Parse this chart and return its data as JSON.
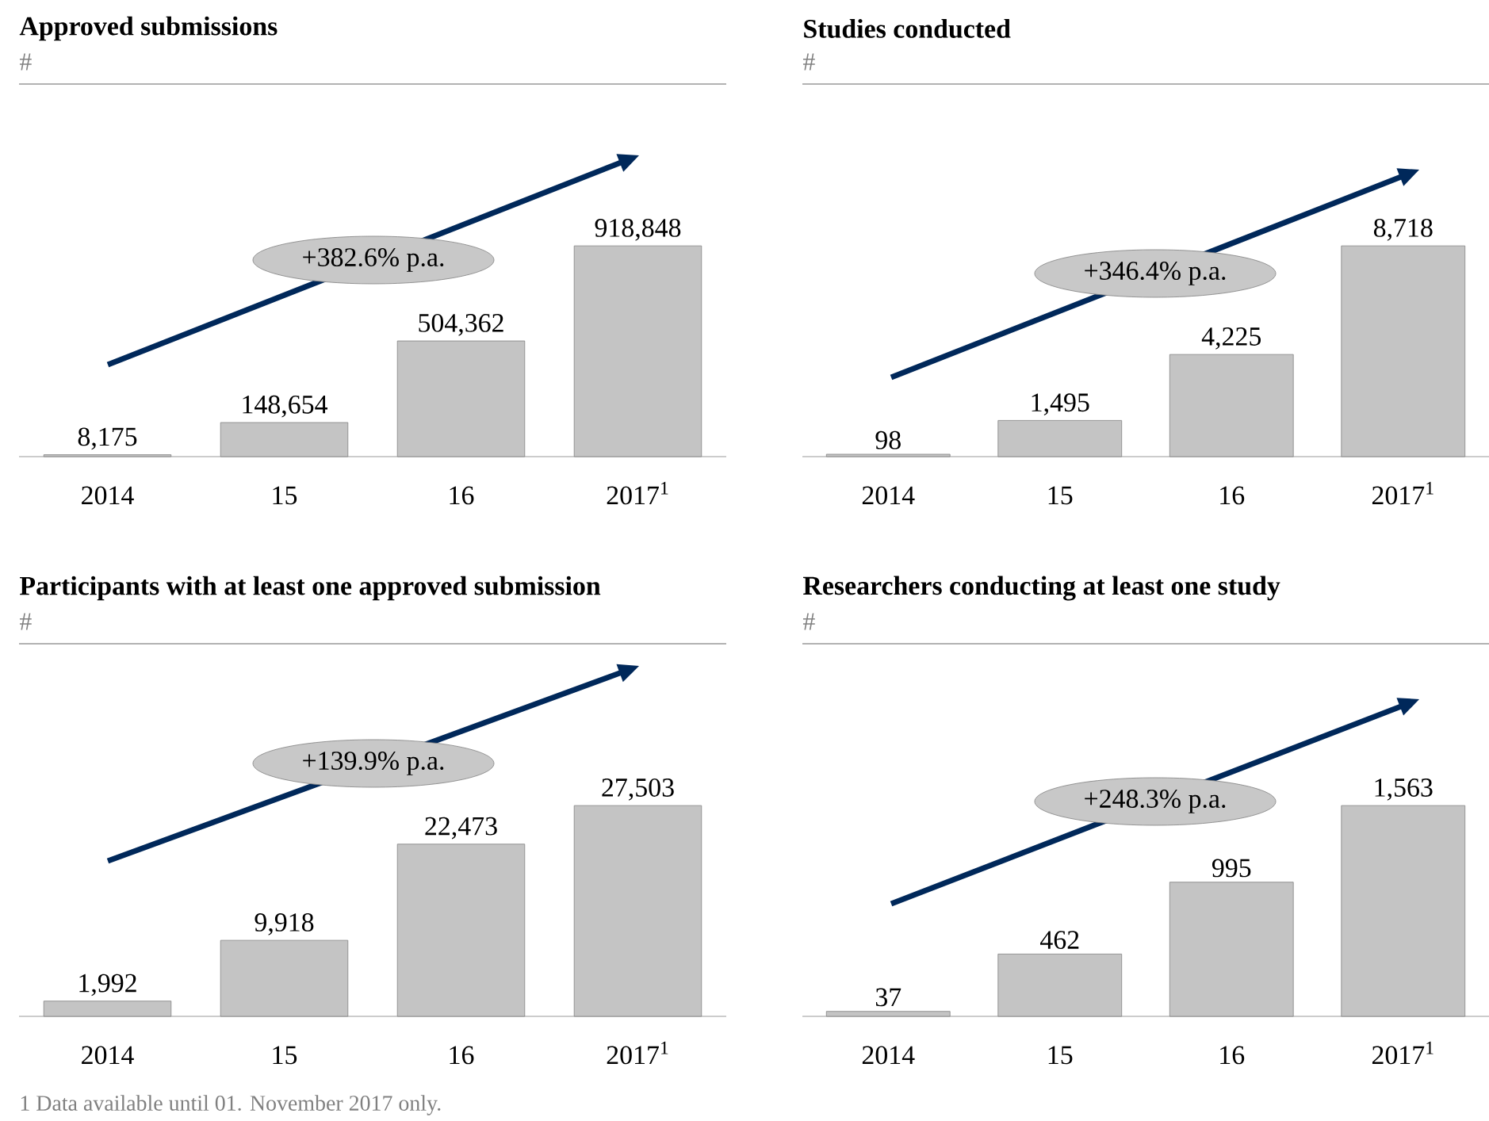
{
  "chart_data": [
    {
      "type": "bar",
      "title": "Approved submissions",
      "subtitle": "#",
      "categories": [
        "2014",
        "15",
        "16",
        "2017$^{1}$"
      ],
      "values": [
        8175,
        148654,
        504362,
        918848
      ],
      "value_labels": [
        "8,175",
        "148,654",
        "504,362",
        "918,848"
      ],
      "color": "#c4c4c4",
      "annotations": [
        "+382.6% p.a."
      ]
    },
    {
      "type": "bar",
      "title": "Studies conducted",
      "subtitle": "#",
      "categories": [
        "2014",
        "15",
        "16",
        "2017$^{1}$"
      ],
      "values": [
        98,
        1495,
        4225,
        8718
      ],
      "value_labels": [
        "98",
        "1,495",
        "4,225",
        "8,718"
      ],
      "color": "#c4c4c4",
      "annotations": [
        "+346.4% p.a."
      ]
    },
    {
      "type": "bar",
      "title": "Participants with at least one approved submission",
      "subtitle": "#",
      "categories": [
        "2014",
        "15",
        "16",
        "2017$^{1}$"
      ],
      "values": [
        1992,
        9918,
        22473,
        27503
      ],
      "value_labels": [
        "1,992",
        "9,918",
        "22,473",
        "27,503"
      ],
      "color": "#c4c4c4",
      "annotations": [
        "+139.9% p.a.",
        "1 Data available until 01. November 2017 only."
      ]
    },
    {
      "type": "bar",
      "title": "Researchers conducting at least one study",
      "subtitle": "#",
      "categories": [
        "2014",
        "15",
        "16",
        "2017$^{1}$"
      ],
      "values": [
        37,
        462,
        995,
        1563
      ],
      "value_labels": [
        "37",
        "462",
        "995",
        "1,563"
      ],
      "color": "#c4c4c4",
      "annotations": [
        "+248.3% p.a."
      ]
    }
  ]
}
